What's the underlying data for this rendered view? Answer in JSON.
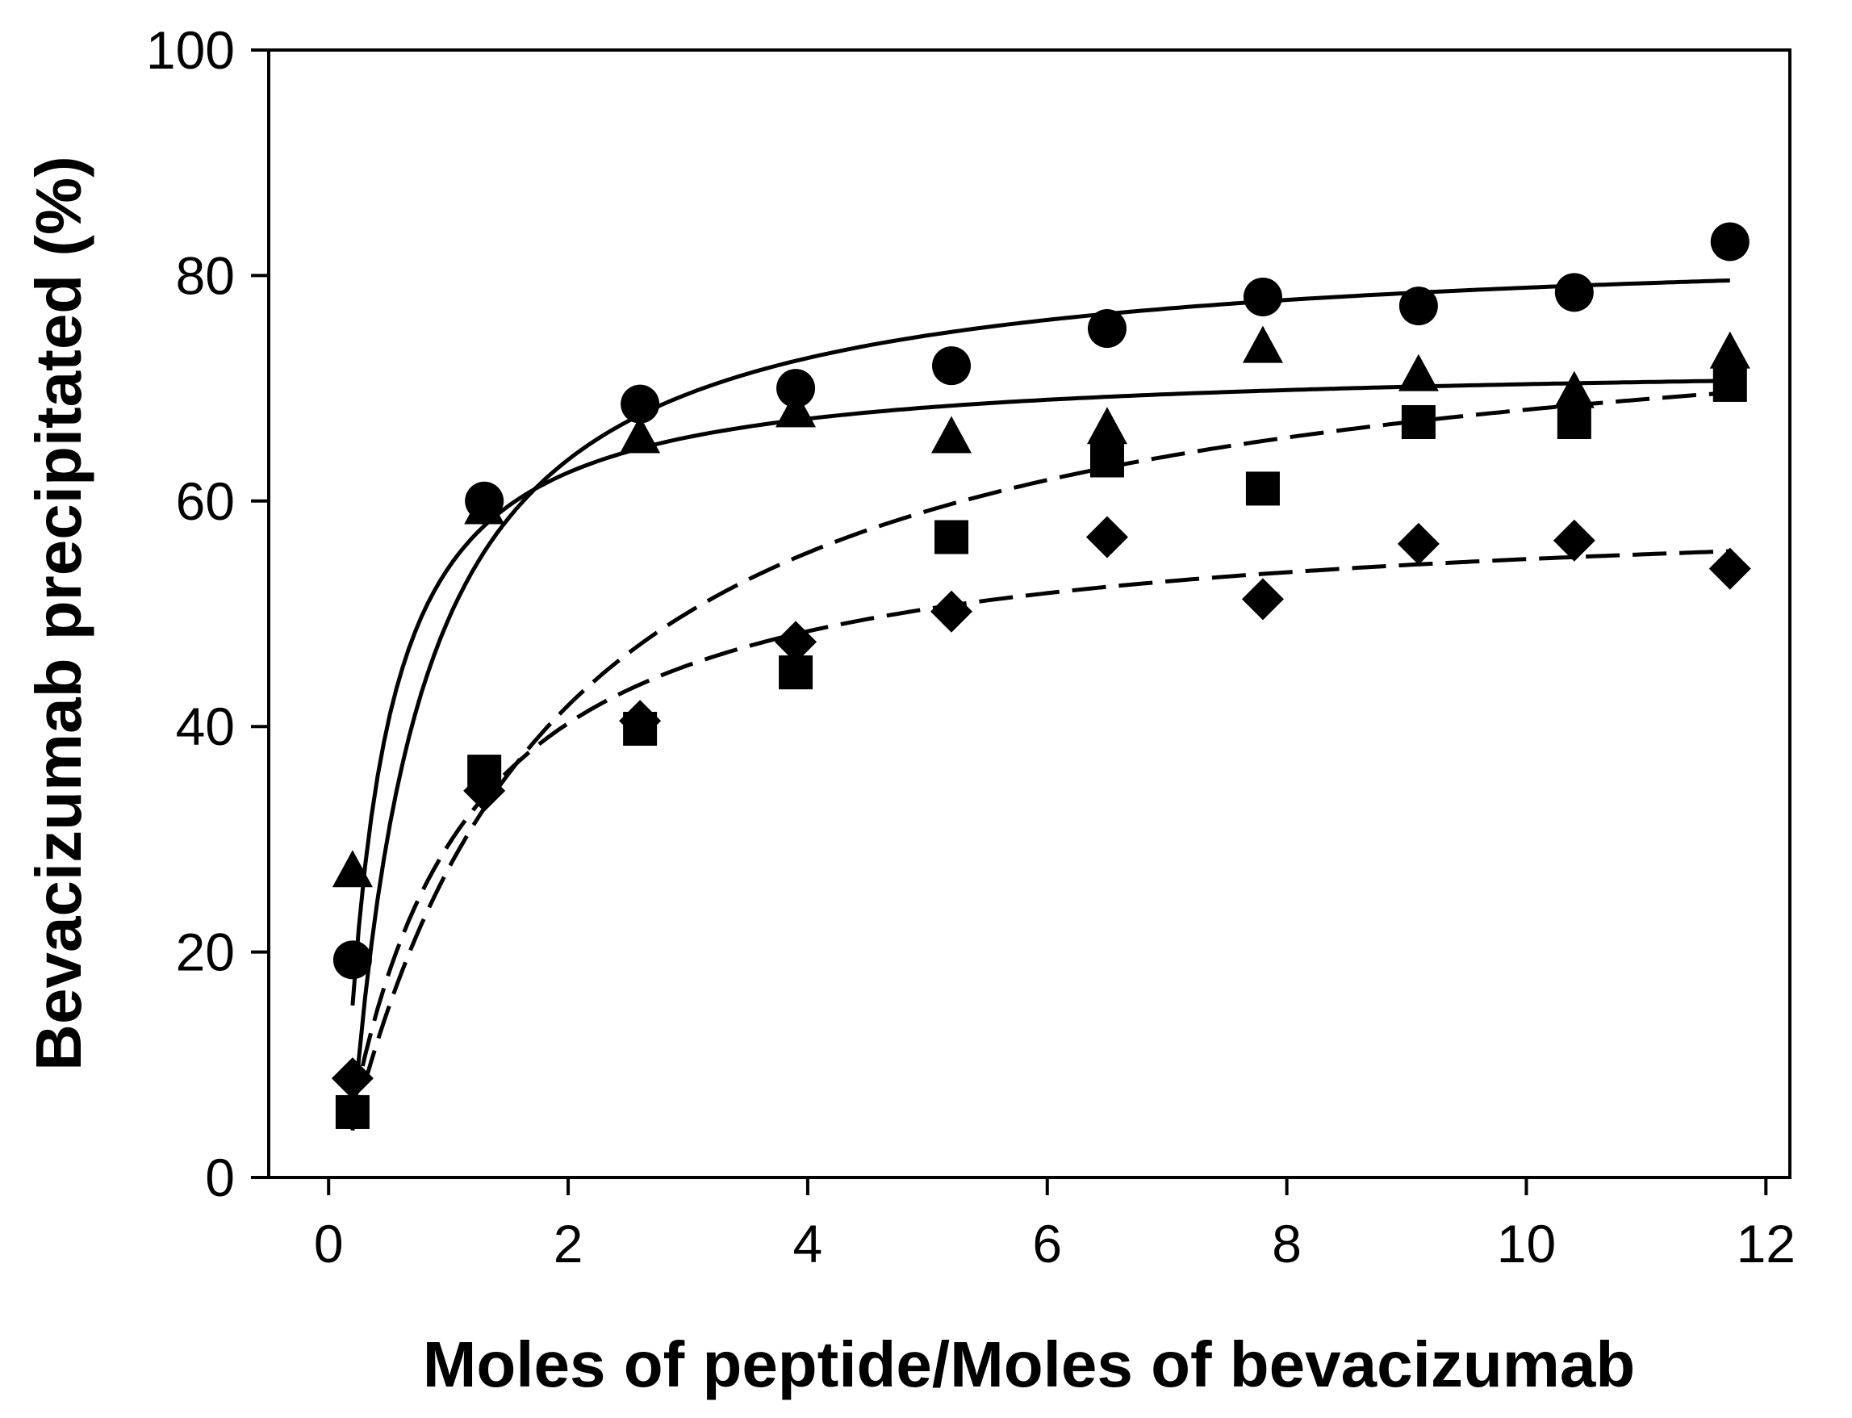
{
  "chart_data": {
    "type": "scatter",
    "xlabel": "Moles of peptide/Moles of bevacizumab",
    "ylabel": "Bevacizumab precipitated (%)",
    "xlim": [
      -0.5,
      12.2
    ],
    "ylim": [
      0,
      100
    ],
    "xticks": [
      0,
      2,
      4,
      6,
      8,
      10,
      12
    ],
    "yticks": [
      0,
      20,
      40,
      60,
      80,
      100
    ],
    "grid": false,
    "legend": "none",
    "series": [
      {
        "marker": "circle",
        "fit_line": "solid",
        "x": [
          0.2,
          1.3,
          2.6,
          3.9,
          5.2,
          6.5,
          7.8,
          9.1,
          10.4,
          11.7
        ],
        "y": [
          19.3,
          60.0,
          68.6,
          70.0,
          72.0,
          75.3,
          78.1,
          77.3,
          78.5,
          83.0
        ],
        "fit": {
          "model": "hyperbolic",
          "ymax": 83.5,
          "k": 0.57,
          "x0": 0.17
        }
      },
      {
        "marker": "triangle",
        "fit_line": "solid",
        "x": [
          0.2,
          1.3,
          2.6,
          3.9,
          5.2,
          6.5,
          7.8,
          9.1,
          10.4,
          11.7
        ],
        "y": [
          27.0,
          59.2,
          65.5,
          67.8,
          65.5,
          66.3,
          73.5,
          71.0,
          69.5,
          73.0
        ],
        "fit": {
          "model": "hyperbolic",
          "ymax": 72.5,
          "k": 0.3,
          "x0": 0.12
        }
      },
      {
        "marker": "square",
        "fit_line": "dashed",
        "x": [
          0.2,
          1.3,
          2.6,
          3.9,
          5.2,
          6.5,
          7.8,
          9.1,
          10.4,
          11.7
        ],
        "y": [
          5.8,
          36.0,
          39.8,
          44.8,
          56.8,
          63.6,
          61.1,
          67.0,
          67.0,
          70.3
        ],
        "fit": {
          "model": "hyperbolic",
          "ymax": 80.0,
          "k": 1.73,
          "x0": 0.1
        }
      },
      {
        "marker": "diamond",
        "fit_line": "dashed",
        "x": [
          0.2,
          1.3,
          2.6,
          3.9,
          5.2,
          6.5,
          7.8,
          9.1,
          10.4,
          11.7
        ],
        "y": [
          8.8,
          34.3,
          40.5,
          47.5,
          50.2,
          56.8,
          51.3,
          56.2,
          56.5,
          54.0
        ],
        "fit": {
          "model": "hyperbolic",
          "ymax": 60.0,
          "k": 0.93,
          "x0": 0.1
        }
      }
    ]
  }
}
